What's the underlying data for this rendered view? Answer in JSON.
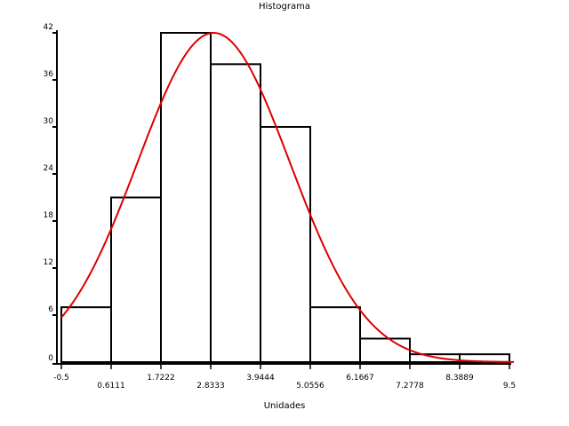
{
  "chart_data": {
    "type": "bar",
    "title": "Histograma",
    "xlabel": "Unidades",
    "ylabel": "",
    "bin_edges": [
      -0.5,
      0.6111,
      1.7222,
      2.8333,
      3.9444,
      5.0556,
      6.1667,
      7.2778,
      8.3889,
      9.5
    ],
    "x_tick_labels": [
      "-0.5",
      "0.6111",
      "1.7222",
      "2.8333",
      "3.9444",
      "5.0556",
      "6.1667",
      "7.2778",
      "8.3889",
      "9.5"
    ],
    "values": [
      7,
      21,
      42,
      38,
      30,
      7,
      3,
      1,
      1
    ],
    "y_ticks": [
      0,
      6,
      12,
      18,
      24,
      30,
      36,
      42
    ],
    "y_tick_labels": [
      "0",
      "6",
      "12",
      "18",
      "24",
      "30",
      "36",
      "42"
    ],
    "xlim": [
      -0.5,
      9.5
    ],
    "ylim": [
      0,
      42
    ],
    "grid": false,
    "fit_curve": {
      "type": "normal",
      "color": "#dd0000",
      "mean": 2.9,
      "std": 1.7,
      "peak": 42,
      "x_range": [
        -0.5,
        9.6
      ]
    },
    "bar_color": "#ffffff",
    "bar_edge_color": "#000000"
  }
}
